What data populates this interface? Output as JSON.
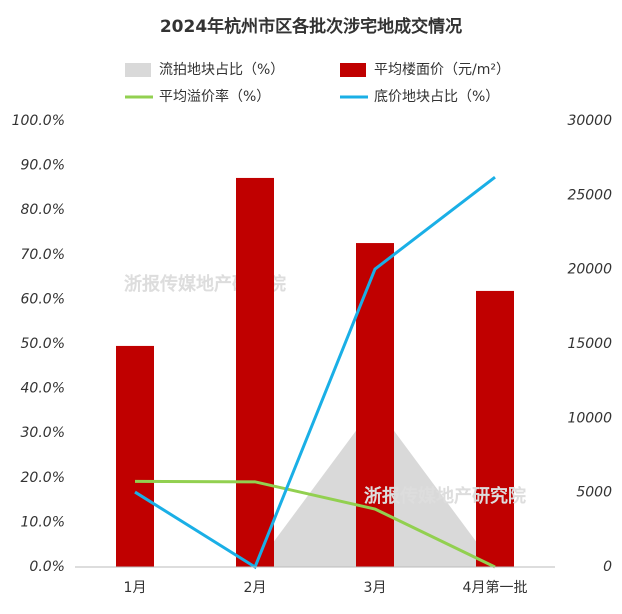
{
  "chart_data": {
    "type": "bar",
    "title": "2024年杭州市区各批次涉宅地成交情况",
    "watermark": "浙报传媒地产研究院",
    "categories": [
      "1月",
      "2月",
      "3月",
      "4月第一批"
    ],
    "series": [
      {
        "name": "流拍地块占比（%）",
        "type": "area",
        "color": "#d9d9d9",
        "values": [
          0,
          0,
          36.3,
          0
        ]
      },
      {
        "name": "平均楼面价（元/m²）",
        "type": "bar",
        "axis": "y2",
        "color": "#c00000",
        "values": [
          14870,
          26170,
          21790,
          18570
        ]
      },
      {
        "name": "平均溢价率（%）",
        "type": "line",
        "color": "#92d050",
        "values": [
          19.2,
          19.1,
          13.0,
          0
        ]
      },
      {
        "name": "底价地块占比（%）",
        "type": "line",
        "color": "#1aafe6",
        "values": [
          16.8,
          0,
          66.8,
          87.4
        ]
      }
    ],
    "ylim": [
      0,
      100
    ],
    "yticks": [
      {
        "value": 0,
        "label": "0.0%"
      },
      {
        "value": 10,
        "label": "10.0%"
      },
      {
        "value": 20,
        "label": "20.0%"
      },
      {
        "value": 30,
        "label": "30.0%"
      },
      {
        "value": 40,
        "label": "40.0%"
      },
      {
        "value": 50,
        "label": "50.0%"
      },
      {
        "value": 60,
        "label": "60.0%"
      },
      {
        "value": 70,
        "label": "70.0%"
      },
      {
        "value": 80,
        "label": "80.0%"
      },
      {
        "value": 90,
        "label": "90.0%"
      },
      {
        "value": 100,
        "label": "100.0%"
      }
    ],
    "y2lim": [
      0,
      30000
    ],
    "y2ticks": [
      0,
      5000,
      10000,
      15000,
      20000,
      25000,
      30000
    ],
    "grid": false
  }
}
